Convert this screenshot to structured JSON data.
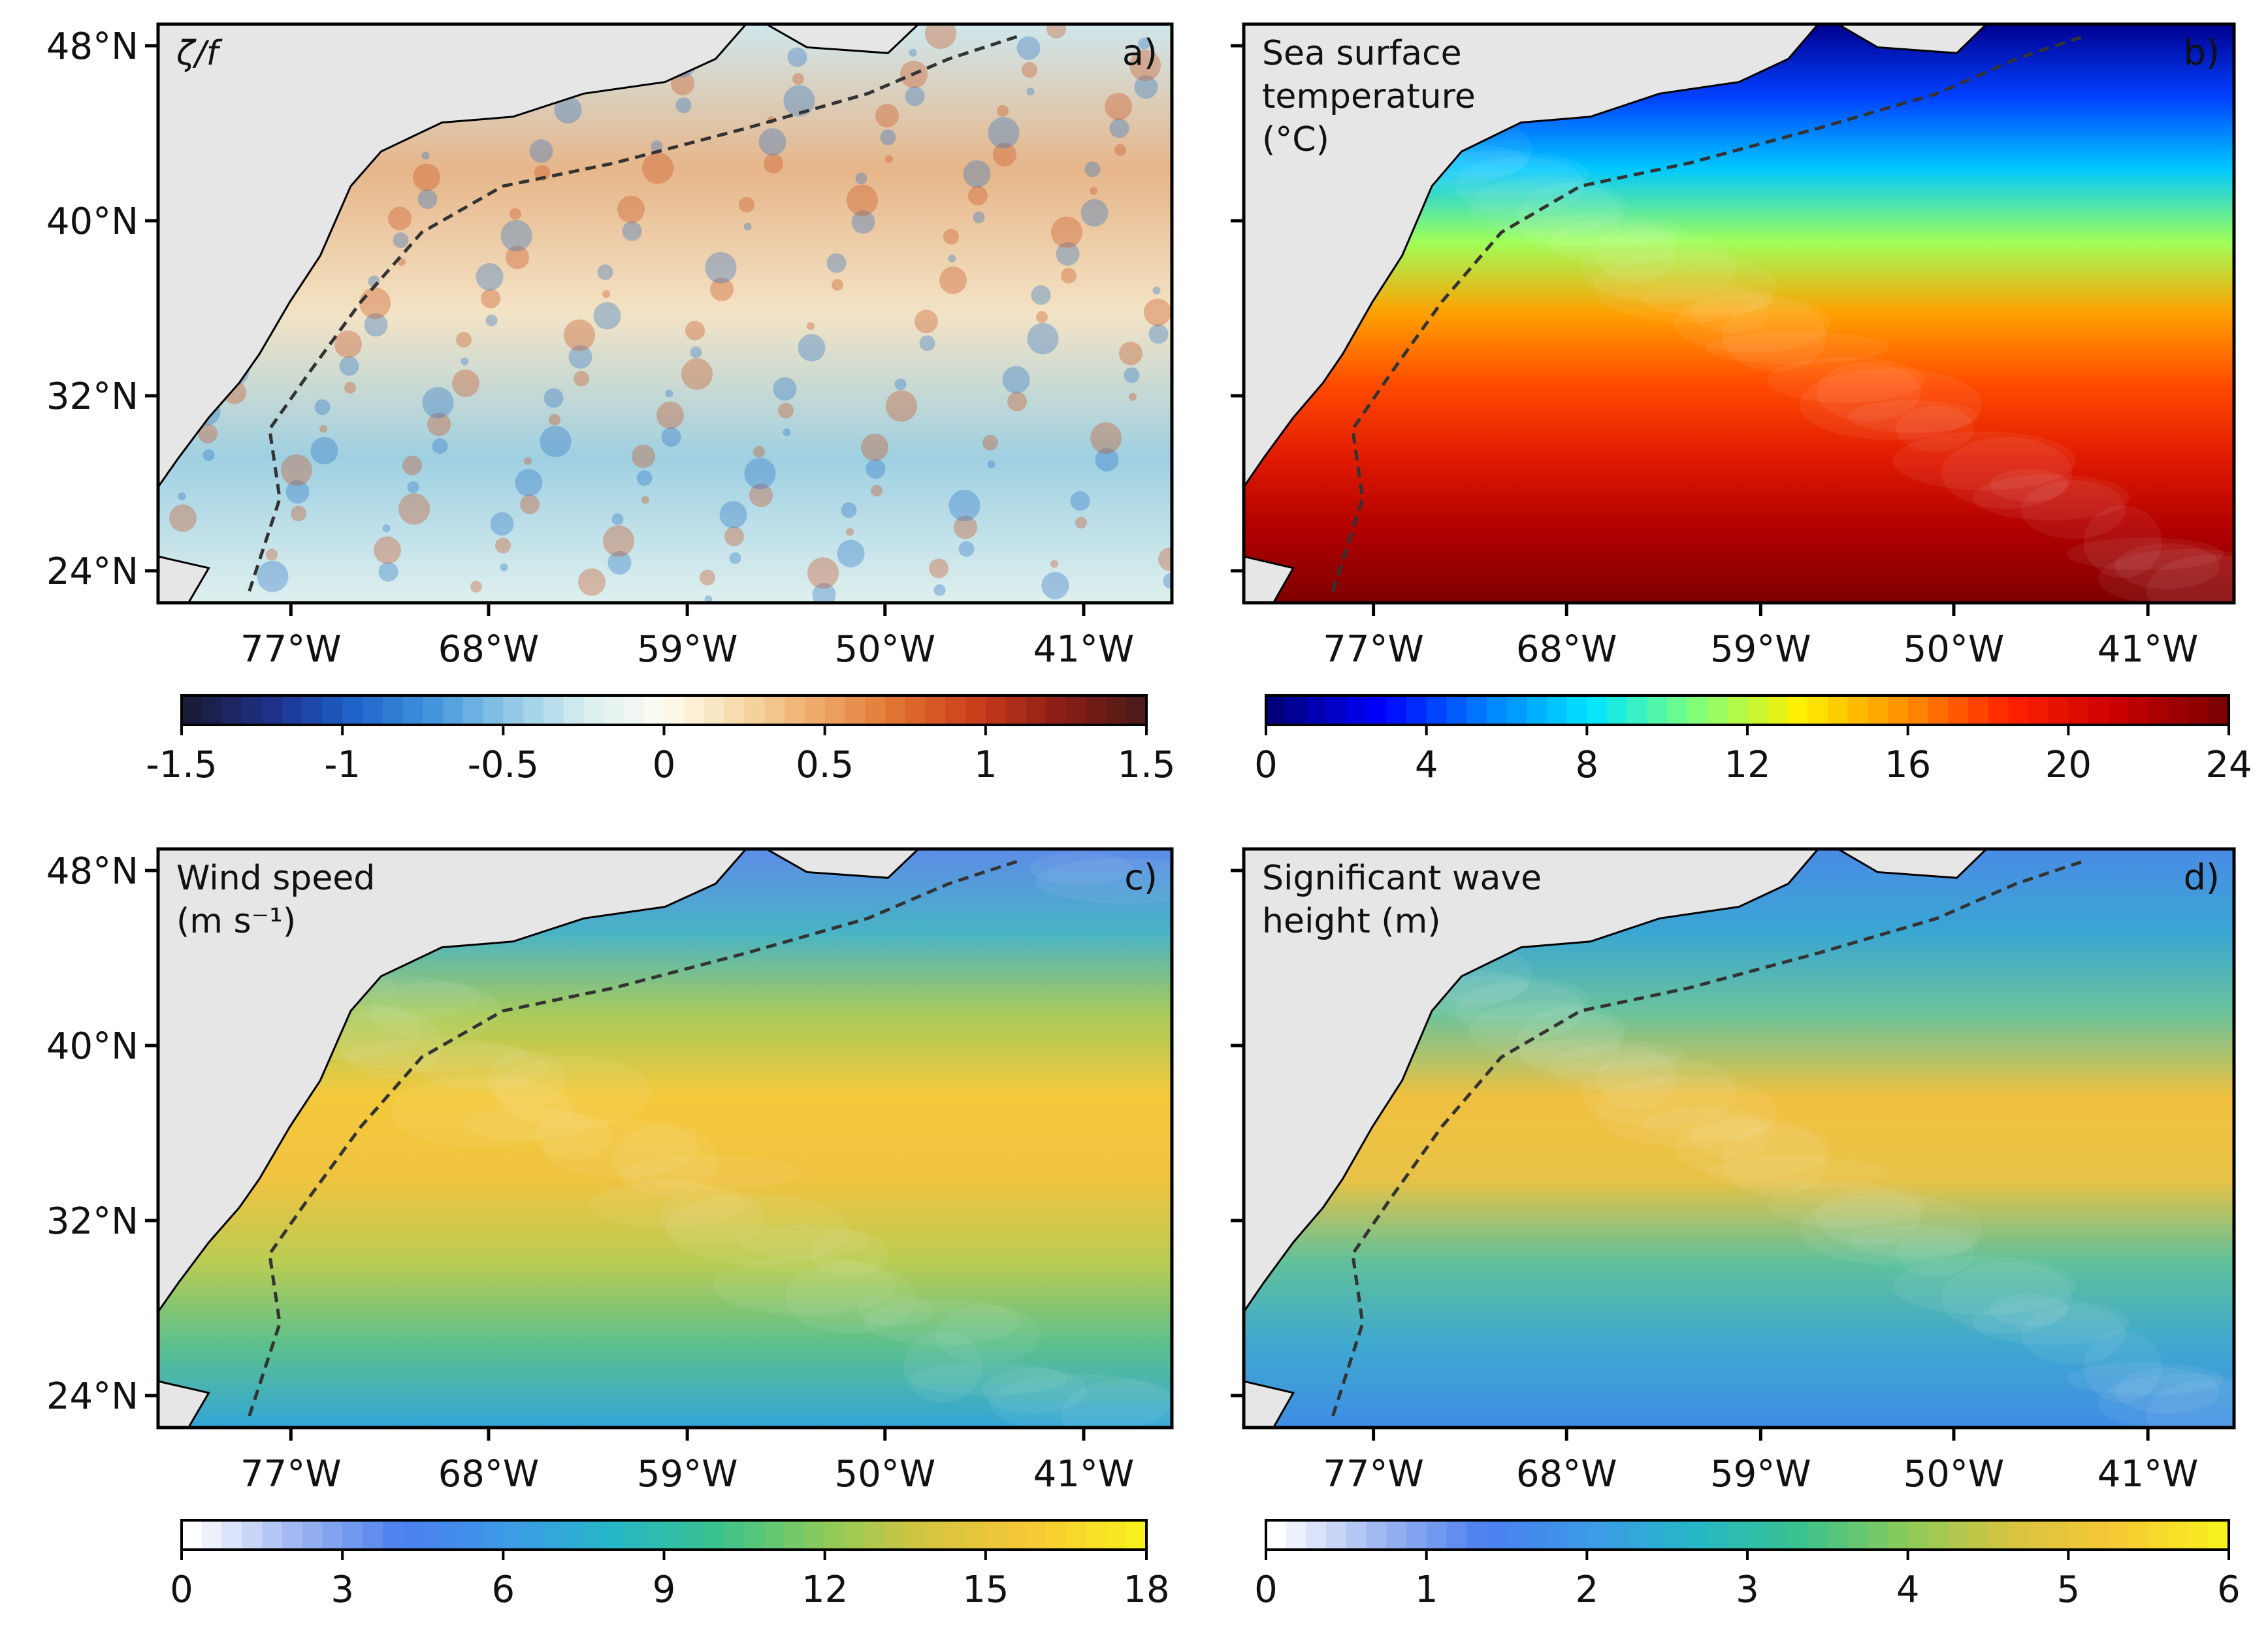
{
  "common": {
    "lat_ticks": [
      "48°N",
      "40°N",
      "32°N",
      "24°N"
    ],
    "lon_ticks": [
      "77°W",
      "68°W",
      "59°W",
      "50°W",
      "41°W"
    ],
    "lat_values": [
      48,
      40,
      32,
      24
    ],
    "lon_values": [
      -77,
      -68,
      -59,
      -50,
      -41
    ],
    "extent": {
      "lon_min": -82,
      "lon_max": -36,
      "lat_min": 22.5,
      "lat_max": 49
    }
  },
  "panels": [
    {
      "id": "a",
      "letter": "a)",
      "label_lines": [
        "ζ/f"
      ],
      "colorbar": {
        "colormap": "diverging-balance",
        "tick_labels": [
          "-1.5",
          "-1",
          "-0.5",
          "0",
          "0.5",
          "1",
          "1.5"
        ],
        "tick_values": [
          -1.5,
          -1,
          -0.5,
          0,
          0.5,
          1,
          1.5
        ],
        "range": [
          -1.5,
          1.5
        ]
      }
    },
    {
      "id": "b",
      "letter": "b)",
      "label_lines": [
        "Sea surface",
        "temperature",
        "(°C)"
      ],
      "colorbar": {
        "colormap": "jet",
        "tick_labels": [
          "0",
          "4",
          "8",
          "12",
          "16",
          "20",
          "24"
        ],
        "tick_values": [
          0,
          4,
          8,
          12,
          16,
          20,
          24
        ],
        "range": [
          0,
          24
        ]
      }
    },
    {
      "id": "c",
      "letter": "c)",
      "label_lines": [
        "Wind speed",
        "(m s⁻¹)"
      ],
      "colorbar": {
        "colormap": "white-blue-green-yellow",
        "tick_labels": [
          "0",
          "3",
          "6",
          "9",
          "12",
          "15",
          "18"
        ],
        "tick_values": [
          0,
          3,
          6,
          9,
          12,
          15,
          18
        ],
        "range": [
          0,
          18
        ]
      }
    },
    {
      "id": "d",
      "letter": "d)",
      "label_lines": [
        "Significant wave",
        "height (m)"
      ],
      "colorbar": {
        "colormap": "white-blue-green-yellow",
        "tick_labels": [
          "0",
          "1",
          "2",
          "3",
          "4",
          "5",
          "6"
        ],
        "tick_values": [
          0,
          1,
          2,
          3,
          4,
          5,
          6
        ],
        "range": [
          0,
          6
        ]
      }
    }
  ],
  "colors": {
    "land": "#e6e6e6",
    "isobath": "#333333",
    "frame": "#000000"
  }
}
